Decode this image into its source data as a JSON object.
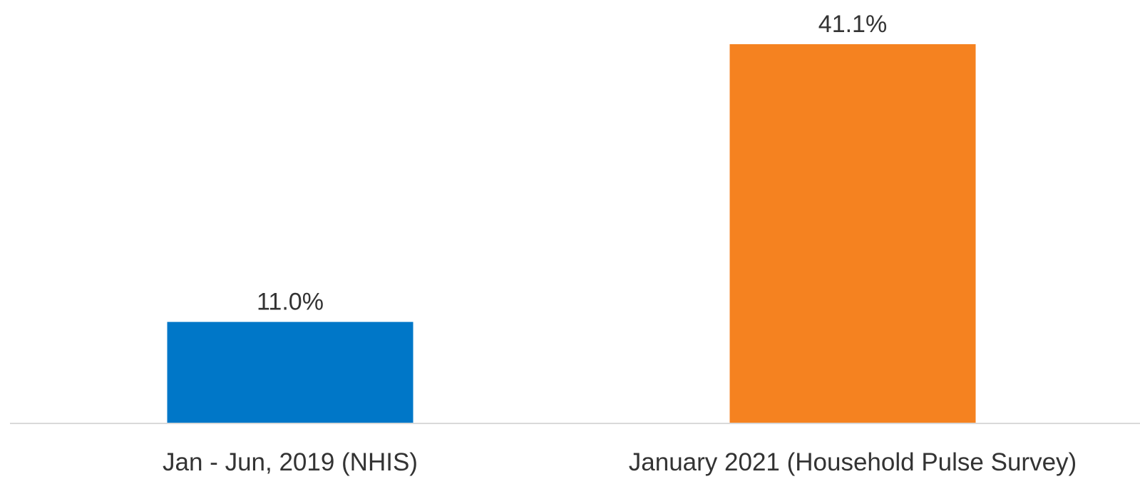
{
  "chart_data": {
    "type": "bar",
    "categories": [
      "Jan - Jun, 2019 (NHIS)",
      "January 2021 (Household Pulse Survey)"
    ],
    "values": [
      11.0,
      41.1
    ],
    "data_labels": [
      "11.0%",
      "41.1%"
    ],
    "colors": [
      "#0077c8",
      "#f58220"
    ],
    "ylim": [
      0,
      41.1
    ],
    "grid": false,
    "legend": "none",
    "axis_color": "#d9d9d9"
  }
}
